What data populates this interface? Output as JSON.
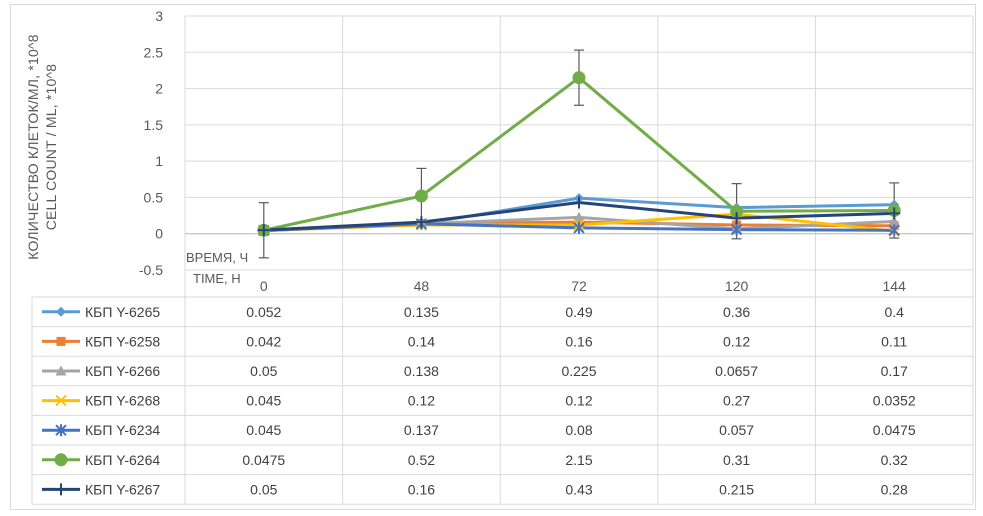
{
  "chart_data": {
    "type": "line",
    "ylabel": "КОЛИЧЕСТВО КЛЕТОК/МЛ, *10^8",
    "ylabel2": "CELL COUNT / ML, *10^8",
    "xlabel": "ВРЕМЯ, Ч",
    "xlabel2": "TIME, H",
    "categories": [
      "0",
      "48",
      "72",
      "120",
      "144"
    ],
    "ylim": [
      -0.5,
      3
    ],
    "yticks": [
      "3",
      "2.5",
      "2",
      "1.5",
      "1",
      "0.5",
      "0",
      "-0.5"
    ],
    "grid": true,
    "data_table": true,
    "series": [
      {
        "name": "КБП Y-6265",
        "color": "#5b9bd5",
        "marker": "diamond",
        "values": [
          0.052,
          0.135,
          0.49,
          0.36,
          0.4
        ],
        "labels": [
          "0.052",
          "0.135",
          "0.49",
          "0.36",
          "0.4"
        ]
      },
      {
        "name": "КБП Y-6258",
        "color": "#ed7d31",
        "marker": "square",
        "values": [
          0.042,
          0.14,
          0.16,
          0.12,
          0.11
        ],
        "labels": [
          "0.042",
          "0.14",
          "0.16",
          "0.12",
          "0.11"
        ]
      },
      {
        "name": "КБП Y-6266",
        "color": "#a5a5a5",
        "marker": "triangle",
        "values": [
          0.05,
          0.138,
          0.225,
          0.0657,
          0.17
        ],
        "labels": [
          "0.05",
          "0.138",
          "0.225",
          "0.0657",
          "0.17"
        ]
      },
      {
        "name": "КБП Y-6268",
        "color": "#ffc000",
        "marker": "x",
        "values": [
          0.045,
          0.12,
          0.12,
          0.27,
          0.0352
        ],
        "labels": [
          "0.045",
          "0.12",
          "0.12",
          "0.27",
          "0.0352"
        ]
      },
      {
        "name": "КБП Y-6234",
        "color": "#4472c4",
        "marker": "star",
        "values": [
          0.045,
          0.137,
          0.08,
          0.057,
          0.0475
        ],
        "labels": [
          "0.045",
          "0.137",
          "0.08",
          "0.057",
          "0.0475"
        ]
      },
      {
        "name": "КБП Y-6264",
        "color": "#70ad47",
        "marker": "circle",
        "values": [
          0.0475,
          0.52,
          2.15,
          0.31,
          0.32
        ],
        "labels": [
          "0.0475",
          "0.52",
          "2.15",
          "0.31",
          "0.32"
        ],
        "error": [
          0.38,
          0.38,
          0.38,
          0.38,
          0.38
        ]
      },
      {
        "name": "КБП Y-6267",
        "color": "#264478",
        "marker": "plus",
        "values": [
          0.05,
          0.16,
          0.43,
          0.215,
          0.28
        ],
        "labels": [
          "0.05",
          "0.16",
          "0.43",
          "0.215",
          "0.28"
        ]
      }
    ]
  }
}
